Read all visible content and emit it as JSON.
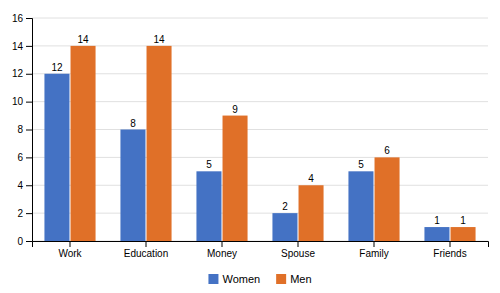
{
  "chart_data": {
    "type": "bar",
    "categories": [
      "Work",
      "Education",
      "Money",
      "Spouse",
      "Family",
      "Friends"
    ],
    "series": [
      {
        "name": "Women",
        "color": "#4472C4",
        "values": [
          12,
          8,
          5,
          2,
          5,
          1
        ]
      },
      {
        "name": "Men",
        "color": "#E07028",
        "values": [
          14,
          14,
          9,
          4,
          6,
          1
        ]
      }
    ],
    "ylim": [
      0,
      16
    ],
    "yticks": [
      0,
      2,
      4,
      6,
      8,
      10,
      12,
      14,
      16
    ],
    "grid": true,
    "data_labels": true,
    "legend": "bottom"
  }
}
